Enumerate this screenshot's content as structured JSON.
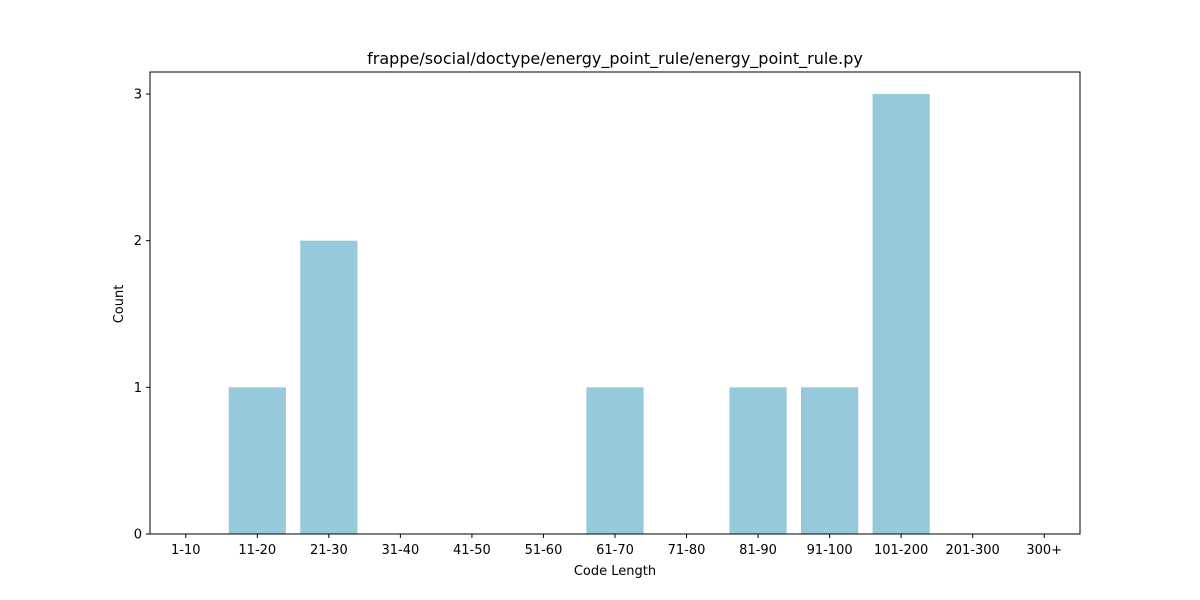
{
  "chart_data": {
    "type": "bar",
    "title": "frappe/social/doctype/energy_point_rule/energy_point_rule.py",
    "xlabel": "Code Length",
    "ylabel": "Count",
    "categories": [
      "1-10",
      "11-20",
      "21-30",
      "31-40",
      "41-50",
      "51-60",
      "61-70",
      "71-80",
      "81-90",
      "91-100",
      "101-200",
      "201-300",
      "300+"
    ],
    "values": [
      0,
      1,
      2,
      0,
      0,
      0,
      1,
      0,
      1,
      1,
      3,
      0,
      0
    ],
    "ylim": [
      0,
      3.15
    ],
    "yticks": [
      0,
      1,
      2,
      3
    ],
    "grid": false,
    "legend": "none",
    "bar_color": "#96c9dc"
  }
}
